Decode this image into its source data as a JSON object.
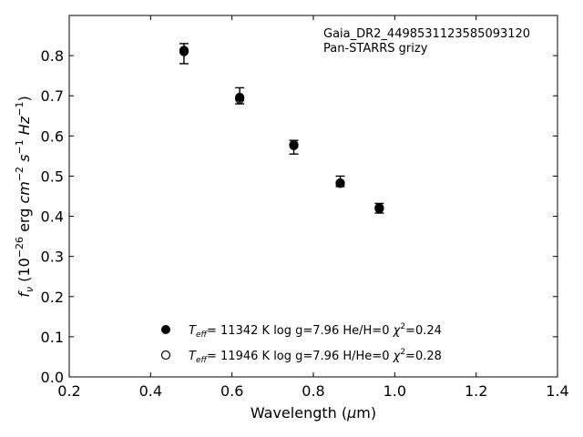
{
  "chart_data": {
    "type": "scatter",
    "xlabel": "Wavelength (μm)",
    "ylabel": "f_ν (10^-26 erg cm^-2 s^-1 Hz^-1)",
    "xlim": [
      0.2,
      1.4
    ],
    "ylim": [
      0.0,
      0.9
    ],
    "xticks": [
      "0.2",
      "0.4",
      "0.6",
      "0.8",
      "1.0",
      "1.2",
      "1.4"
    ],
    "yticks": [
      "0.0",
      "0.1",
      "0.2",
      "0.3",
      "0.4",
      "0.5",
      "0.6",
      "0.7",
      "0.8"
    ],
    "annotation_lines": [
      "Gaia_DR2_4498531123585093120",
      "Pan-STARRS grizy"
    ],
    "observed": {
      "x": [
        0.482,
        0.619,
        0.752,
        0.866,
        0.962
      ],
      "y": [
        0.805,
        0.7,
        0.572,
        0.487,
        0.42
      ],
      "yerr_low": [
        0.025,
        0.02,
        0.017,
        0.013,
        0.012
      ],
      "yerr_high": [
        0.025,
        0.02,
        0.017,
        0.013,
        0.012
      ]
    },
    "series": [
      {
        "name": "T_eff= 11342 K  log g=7.96  He/H=0  χ^2=0.24",
        "marker": "filled",
        "x": [
          0.482,
          0.619,
          0.752,
          0.866,
          0.962
        ],
        "y": [
          0.81,
          0.696,
          0.576,
          0.483,
          0.421
        ]
      },
      {
        "name": "T_eff= 11946 K  log g=7.96  H/He=0  χ^2=0.28",
        "marker": "open",
        "x": [
          0.482,
          0.619,
          0.752,
          0.866,
          0.962
        ],
        "y": [
          0.813,
          0.692,
          0.578,
          0.482,
          0.419
        ]
      }
    ],
    "legend": [
      {
        "marker": "filled",
        "teff": "11342 K",
        "logg": "log g=7.96",
        "comp": "He/H=0",
        "chi2": "=0.24"
      },
      {
        "marker": "open",
        "teff": "11946 K",
        "logg": "log g=7.96",
        "comp": "H/He=0",
        "chi2": "=0.28"
      }
    ],
    "legend_placement": "lower-center",
    "grid": false
  }
}
